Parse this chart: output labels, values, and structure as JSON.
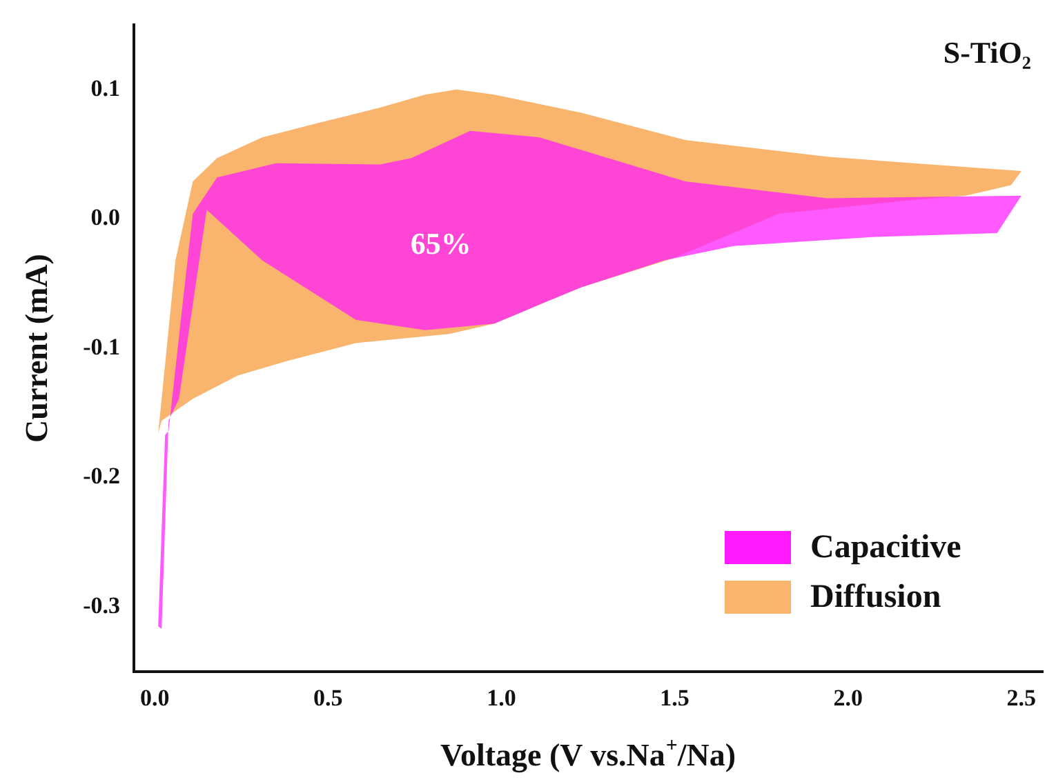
{
  "chart_data": {
    "type": "area",
    "xlabel": "Voltage (V vs.Na$^{+}$/Na)",
    "ylabel": "Current (mA)",
    "xlim": [
      -0.06,
      2.56
    ],
    "ylim": [
      -0.35,
      0.15
    ],
    "xticks": [
      {
        "value": 0,
        "label": "0.0"
      },
      {
        "value": 0.5,
        "label": "0.5"
      },
      {
        "value": 1,
        "label": "1.0"
      },
      {
        "value": 1.5,
        "label": "1.5"
      },
      {
        "value": 2,
        "label": "2.0"
      },
      {
        "value": 2.5,
        "label": "2.5"
      }
    ],
    "yticks": [
      -0.3,
      -0.2,
      -0.1,
      {
        "value": 0,
        "label": "0.0"
      },
      0.1
    ],
    "grid": false,
    "legend": "bottom right",
    "annotations": [
      "S-TiO₂",
      "65%"
    ],
    "series": [
      {
        "name": "Diffusion",
        "color": "#f9b46e",
        "x": [
          0.01,
          0.06,
          0.11,
          0.18,
          0.31,
          0.47,
          0.65,
          0.78,
          0.87,
          0.98,
          1.23,
          1.53,
          1.94,
          2.34,
          2.5,
          2.47,
          2.34,
          2.2,
          1.8,
          1.5,
          1.23,
          1.13,
          0.98,
          0.85,
          0.58,
          0.38,
          0.24,
          0.11,
          0.02
        ],
        "values": [
          -0.166,
          -0.032,
          0.029,
          0.047,
          0.063,
          0.074,
          0.086,
          0.096,
          0.1,
          0.096,
          0.082,
          0.061,
          0.048,
          0.04,
          0.037,
          0.026,
          0.018,
          0.015,
          0.004,
          -0.03,
          -0.053,
          -0.064,
          -0.081,
          -0.089,
          -0.096,
          -0.11,
          -0.121,
          -0.139,
          -0.156
        ]
      },
      {
        "name": "Capacitive",
        "color": "#ff1aff",
        "x": [
          0.01,
          0.03,
          0.04,
          0.08,
          0.11,
          0.18,
          0.35,
          0.65,
          0.74,
          0.91,
          1.11,
          1.53,
          1.94,
          2.5,
          2.43,
          2.07,
          1.67,
          1.47,
          1.23,
          1.13,
          0.98,
          0.78,
          0.58,
          0.31,
          0.15,
          0.07,
          0.04,
          0.02
        ],
        "values": [
          -0.315,
          -0.167,
          -0.164,
          -0.067,
          0.004,
          0.032,
          0.043,
          0.042,
          0.047,
          0.068,
          0.063,
          0.029,
          0.016,
          0.018,
          -0.011,
          -0.014,
          -0.021,
          -0.032,
          -0.053,
          -0.064,
          -0.081,
          -0.086,
          -0.078,
          -0.032,
          0.007,
          -0.139,
          -0.156,
          -0.317
        ]
      }
    ]
  }
}
